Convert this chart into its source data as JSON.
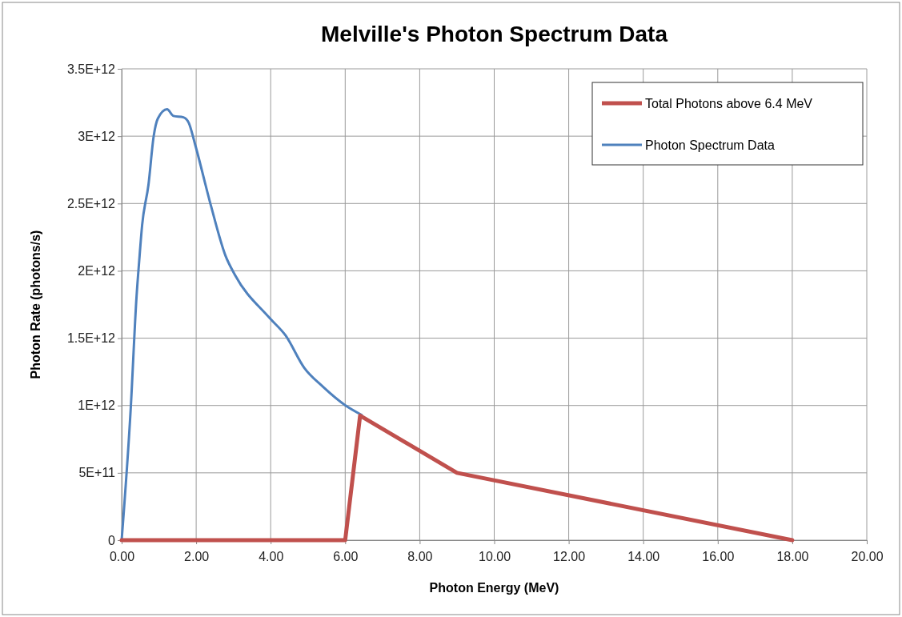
{
  "chart_data": {
    "type": "line",
    "title": "Melville's Photon Spectrum Data",
    "xlabel": "Photon Energy (MeV)",
    "ylabel": "Photon Rate (photons/s)",
    "xlim": [
      0,
      20
    ],
    "xticks": [
      {
        "value": 0,
        "label": "0.00"
      },
      {
        "value": 2,
        "label": "2.00"
      },
      {
        "value": 4,
        "label": "4.00"
      },
      {
        "value": 6,
        "label": "6.00"
      },
      {
        "value": 8,
        "label": "8.00"
      },
      {
        "value": 10,
        "label": "10.00"
      },
      {
        "value": 12,
        "label": "12.00"
      },
      {
        "value": 14,
        "label": "14.00"
      },
      {
        "value": 16,
        "label": "16.00"
      },
      {
        "value": 18,
        "label": "18.00"
      },
      {
        "value": 20,
        "label": "20.00"
      }
    ],
    "ylim": [
      0,
      3500000000000.0
    ],
    "yticks": [
      0,
      {
        "value": 500000000000.0,
        "label": "5E+11"
      },
      {
        "value": 1000000000000.0,
        "label": "1E+12"
      },
      {
        "value": 1500000000000.0,
        "label": "1.5E+12"
      },
      {
        "value": 2000000000000.0,
        "label": "2E+12"
      },
      {
        "value": 2500000000000.0,
        "label": "2.5E+12"
      },
      {
        "value": 3000000000000.0,
        "label": "3E+12"
      },
      {
        "value": 3500000000000.0,
        "label": "3.5E+12"
      }
    ],
    "grid": true,
    "legend": "top right",
    "marker": "none",
    "line_style": "solid",
    "series": [
      {
        "name": "Total Photons above 6.4 MeV",
        "color": "#c0504d",
        "x": [
          0,
          6,
          6.4,
          9,
          18
        ],
        "values": [
          0,
          0,
          925000000000.0,
          500000000000.0,
          0
        ]
      },
      {
        "name": "Photon Spectrum Data",
        "color": "#4f81bd",
        "x": [
          0,
          0.24,
          0.4,
          0.47,
          0.55,
          0.72,
          0.86,
          0.97,
          1.22,
          1.39,
          1.66,
          1.8,
          1.97,
          2.39,
          2.79,
          3.04,
          3.97,
          4.4,
          4.9,
          5.4,
          6.01,
          6.44
        ],
        "values": [
          0,
          960000000000.0,
          1810000000000.0,
          2070000000000.0,
          2340000000000.0,
          2640000000000.0,
          3000000000000.0,
          3130000000000.0,
          3200000000000.0,
          3150000000000.0,
          3140000000000.0,
          3100000000000.0,
          2940000000000.0,
          2490000000000.0,
          2110000000000.0,
          1970000000000.0,
          1650000000000.0,
          1520000000000.0,
          1280000000000.0,
          1140000000000.0,
          1000000000000.0,
          930000000000.0
        ]
      }
    ]
  }
}
